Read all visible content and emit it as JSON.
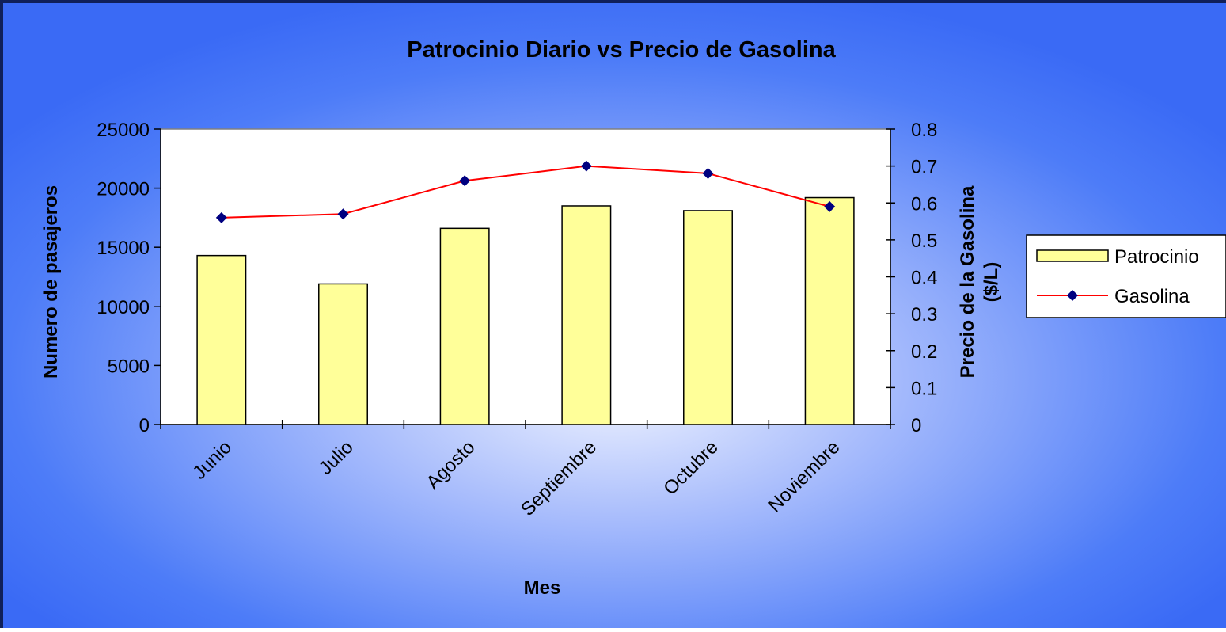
{
  "chart_data": {
    "type": "bar-line",
    "title": "Patrocinio Diario vs Precio de Gasolina",
    "xlabel": "Mes",
    "ylabel": "Numero de pasajeros",
    "y2label_lines": [
      "Precio de la Gasolina",
      "($/L)"
    ],
    "categories": [
      "Junio",
      "Julio",
      "Agosto",
      "Septiembre",
      "Octubre",
      "Noviembre"
    ],
    "series": [
      {
        "name": "Patrocinio",
        "type": "bar",
        "color": "#ffff99",
        "values": [
          14300,
          11900,
          16600,
          18500,
          18100,
          19200
        ]
      },
      {
        "name": "Gasolina",
        "type": "line",
        "axis": "y2",
        "color": "#ff0000",
        "marker_color": "#000080",
        "values": [
          0.56,
          0.57,
          0.66,
          0.7,
          0.68,
          0.59
        ]
      }
    ],
    "ylim": [
      0,
      25000
    ],
    "yticks": [
      0,
      5000,
      10000,
      15000,
      20000,
      25000
    ],
    "y2lim": [
      0,
      0.8
    ],
    "y2ticks": [
      0,
      0.1,
      0.2,
      0.3,
      0.4,
      0.5,
      0.6,
      0.7,
      0.8
    ],
    "legend": "right"
  }
}
